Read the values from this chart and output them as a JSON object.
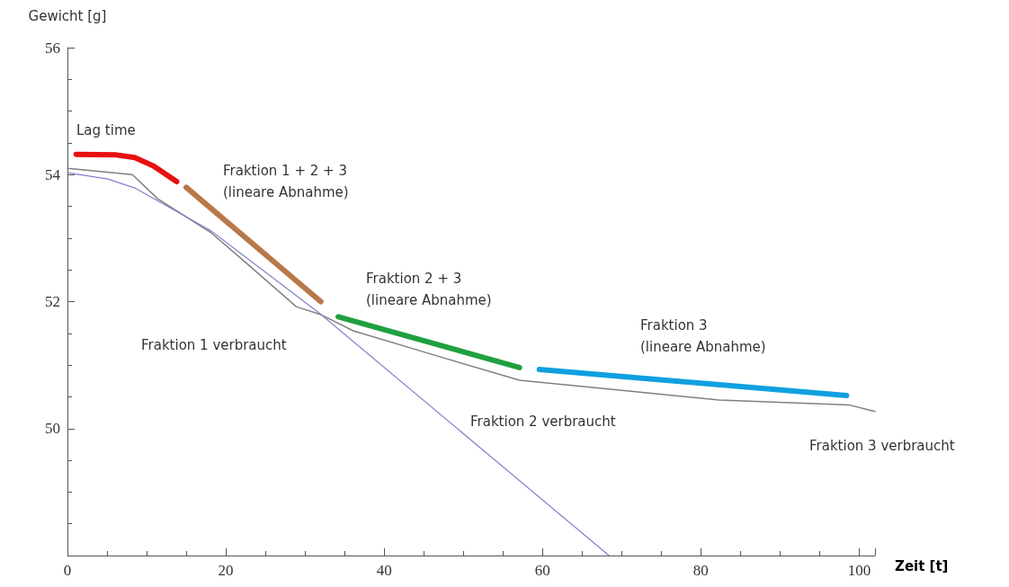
{
  "chart_data": {
    "type": "line",
    "xlabel": "Zeit [t]",
    "ylabel": "Gewicht [g]",
    "xlim": [
      0,
      102
    ],
    "xticks": [
      0,
      20,
      40,
      60,
      80,
      100
    ],
    "ylim": [
      48,
      56
    ],
    "yticks": [
      50,
      52,
      54,
      56
    ],
    "grid": false,
    "marker": "none",
    "line_style": "solid",
    "series": [
      {
        "color": "#808080",
        "x": [
          0,
          8.2,
          11.4,
          18.2,
          22.1,
          28.9,
          32.1,
          36.1,
          46,
          57.1,
          70.9,
          82.3,
          98.8,
          102
        ],
        "values": [
          54.1,
          54,
          53.62,
          53.08,
          52.66,
          51.92,
          51.79,
          51.54,
          51.17,
          50.76,
          50.59,
          50.45,
          50.37,
          50.27
        ]
      },
      {
        "color": "#8080c8",
        "x": [
          0,
          5.1,
          8.5,
          18.2,
          31.8,
          68.4
        ],
        "values": [
          54.03,
          53.93,
          53.79,
          53.11,
          51.82,
          48
        ]
      },
      {
        "color": "#e81010",
        "x": [
          1.1,
          6.2,
          8.5,
          10.8,
          13.8
        ],
        "values": [
          54.32,
          54.31,
          54.27,
          54.14,
          53.89
        ]
      },
      {
        "color": "#b87848",
        "x": [
          15,
          32
        ],
        "values": [
          53.8,
          52
        ]
      },
      {
        "color": "#20a040",
        "x": [
          34.2,
          57.1
        ],
        "values": [
          51.76,
          50.96
        ]
      },
      {
        "color": "#10a0e0",
        "x": [
          59.6,
          98.4
        ],
        "values": [
          50.93,
          50.52
        ]
      }
    ],
    "annotations": [
      "Lag time",
      "Fraktion 1 + 2 + 3\n(lineare Abnahme)",
      "Fraktion 2 + 3\n(lineare Abnahme)",
      "Fraktion 3\n(lineare Abnahme)",
      "Fraktion 1 verbraucht",
      "Fraktion 2 verbraucht",
      "Fraktion 3 verbraucht"
    ]
  }
}
